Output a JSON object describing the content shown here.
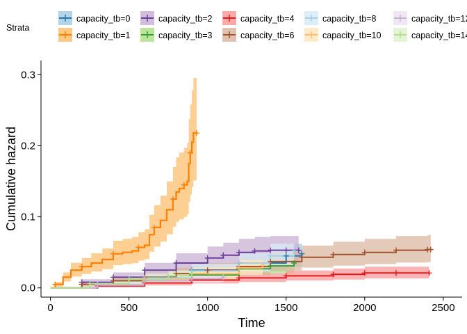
{
  "chart_data": {
    "type": "line",
    "xlabel": "Time",
    "ylabel": "Cumulative hazard",
    "xlim": [
      -60,
      2620
    ],
    "ylim": [
      -0.013,
      0.32
    ],
    "xticks": [
      0,
      500,
      1000,
      1500,
      2000,
      2500
    ],
    "yticks": [
      0.0,
      0.1,
      0.2,
      0.3
    ],
    "ytick_labels": [
      "0.0",
      "0.1",
      "0.2",
      "0.3"
    ],
    "legend": {
      "title": "Strata",
      "position": "top",
      "columns": 6
    },
    "series": [
      {
        "name": "capacity_tb=0",
        "color": "#1f78b4",
        "band": "#a6cee3",
        "x": [
          0,
          300,
          600,
          900,
          1200,
          1500,
          1600
        ],
        "y": [
          0,
          0.003,
          0.012,
          0.025,
          0.035,
          0.045,
          0.048
        ]
      },
      {
        "name": "capacity_tb=1",
        "color": "#ff7f00",
        "band": "#fdbf6f",
        "x": [
          0,
          30,
          80,
          130,
          200,
          260,
          330,
          400,
          460,
          520,
          560,
          600,
          630,
          660,
          700,
          740,
          780,
          800,
          820,
          850,
          870,
          880,
          890,
          900,
          910,
          930
        ],
        "y": [
          0,
          0.005,
          0.015,
          0.025,
          0.03,
          0.035,
          0.04,
          0.048,
          0.05,
          0.052,
          0.057,
          0.06,
          0.075,
          0.085,
          0.095,
          0.11,
          0.125,
          0.135,
          0.14,
          0.145,
          0.15,
          0.175,
          0.19,
          0.205,
          0.218,
          0.218
        ]
      },
      {
        "name": "capacity_tb=2",
        "color": "#6a3d9a",
        "band": "#cab2d6",
        "x": [
          0,
          200,
          400,
          600,
          800,
          1000,
          1100,
          1200,
          1300,
          1400,
          1500,
          1580
        ],
        "y": [
          0,
          0.008,
          0.015,
          0.025,
          0.035,
          0.042,
          0.046,
          0.05,
          0.052,
          0.053,
          0.053,
          0.053
        ]
      },
      {
        "name": "capacity_tb=3",
        "color": "#33a02c",
        "band": "#b2df8a",
        "x": [
          0,
          300,
          600,
          900,
          1200,
          1400,
          1550
        ],
        "y": [
          0,
          0.004,
          0.01,
          0.018,
          0.027,
          0.031,
          0.035
        ]
      },
      {
        "name": "capacity_tb=4",
        "color": "#e31a1c",
        "band": "#fb9a99",
        "x": [
          0,
          300,
          600,
          900,
          1200,
          1500,
          1800,
          2000,
          2200,
          2410
        ],
        "y": [
          0,
          0.003,
          0.007,
          0.011,
          0.014,
          0.017,
          0.019,
          0.021,
          0.021,
          0.021
        ]
      },
      {
        "name": "capacity_tb=6",
        "color": "#a0522d",
        "band": "#d9b8a2",
        "x": [
          0,
          200,
          400,
          600,
          800,
          1000,
          1200,
          1400,
          1600,
          1800,
          2000,
          2200,
          2400,
          2420
        ],
        "y": [
          0,
          0.005,
          0.01,
          0.015,
          0.02,
          0.025,
          0.03,
          0.037,
          0.043,
          0.047,
          0.05,
          0.053,
          0.054,
          0.054
        ]
      },
      {
        "name": "capacity_tb=8",
        "color": "#a6cee3",
        "band": "#d8ebf5",
        "x": [
          0,
          300,
          600,
          900,
          1200,
          1400,
          1550
        ],
        "y": [
          0,
          0.005,
          0.014,
          0.024,
          0.035,
          0.045,
          0.052
        ]
      },
      {
        "name": "capacity_tb=10",
        "color": "#fdbf6f",
        "band": "#fee5c2",
        "x": [
          0,
          300,
          600,
          900,
          1200,
          1350
        ],
        "y": [
          0,
          0.004,
          0.012,
          0.02,
          0.028,
          0.032
        ]
      },
      {
        "name": "capacity_tb=12",
        "color": "#cab2d6",
        "band": "#ece3f1",
        "x": [
          0,
          300,
          600,
          900,
          1100
        ],
        "y": [
          0,
          0.004,
          0.01,
          0.013,
          0.015
        ]
      },
      {
        "name": "capacity_tb=14",
        "color": "#b2df8a",
        "band": "#e1f2d2",
        "x": [
          0,
          250,
          500,
          750,
          900
        ],
        "y": [
          0,
          0.006,
          0.012,
          0.017,
          0.02
        ]
      }
    ]
  }
}
